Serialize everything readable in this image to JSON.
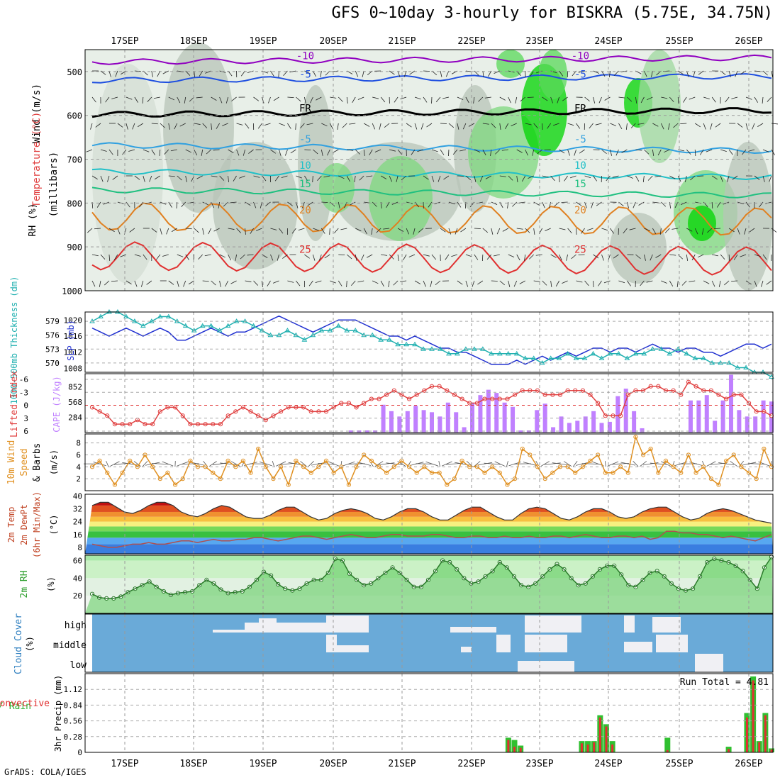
{
  "title": "GFS 0~10day 3-hourly for BISKRA (5.75E, 34.75N)",
  "footer": "GrADS: COLA/IGES",
  "colors": {
    "rh_green": "#00d400",
    "rh_grey": "#b8c4b8",
    "cape": "#c080ff",
    "lifted": "#e04040",
    "slp": "#2030d0",
    "thickness": "#20b0b0",
    "wind10": "#e09020",
    "rh2m": "#50c050",
    "cloud_blue": "#6aaad8",
    "cloud_white": "#f0f0f4",
    "precip_green": "#30c030",
    "precip_red": "#e03030"
  },
  "chart_data": [
    {
      "panel": "upper-air",
      "type": "heatmap",
      "ylabel_parts": [
        "RH (%)",
        "Temperature (°C)",
        "Wind (m/s)"
      ],
      "yunit": "(millibars)",
      "yticks": [
        500,
        600,
        700,
        800,
        900,
        1000
      ],
      "ylim": [
        450,
        1000
      ],
      "days": [
        "17SEP",
        "18SEP",
        "19SEP",
        "20SEP",
        "21SEP",
        "22SEP",
        "23SEP",
        "24SEP",
        "25SEP",
        "26SEP"
      ],
      "isotherms": [
        {
          "label": "-10",
          "color": "#9000c0",
          "level": 478
        },
        {
          "label": "-5",
          "color": "#2050e0",
          "level": 520
        },
        {
          "label": "FR",
          "color": "#000000",
          "level": 598
        },
        {
          "label": "-5",
          "color": "#30a0e0",
          "level": 668
        },
        {
          "label": "10",
          "color": "#20c0c8",
          "level": 728
        },
        {
          "label": "15",
          "color": "#20c080",
          "level": 770
        },
        {
          "label": "20",
          "color": "#e08020",
          "level": 830
        },
        {
          "label": "25",
          "color": "#e03030",
          "level": 920
        }
      ]
    },
    {
      "panel": "slp-thickness",
      "type": "line",
      "ylabel_left": "1000-500mb Thickness (dm)",
      "ylabel_right": "SLP (mb)",
      "thickness_ticks": [
        570,
        573,
        576,
        579
      ],
      "slp_ticks": [
        1008,
        1012,
        1016,
        1020
      ],
      "series": [
        {
          "values": [
            1018,
            1017,
            1016,
            1017,
            1018,
            1017,
            1016,
            1017,
            1018,
            1017,
            1015,
            1015,
            1016,
            1017,
            1018,
            1017,
            1016,
            1017,
            1017,
            1018,
            1019,
            1020,
            1021,
            1020,
            1019,
            1018,
            1017,
            1018,
            1019,
            1020,
            1020,
            1020,
            1019,
            1018,
            1017,
            1016,
            1016,
            1015,
            1016,
            1015,
            1014,
            1013,
            1013,
            1012,
            1012,
            1011,
            1010,
            1009,
            1009,
            1009,
            1010,
            1009,
            1010,
            1011,
            1010,
            1011,
            1012,
            1011,
            1012,
            1013,
            1013,
            1012,
            1013,
            1013,
            1012,
            1013,
            1014,
            1013,
            1013,
            1012,
            1013,
            1013,
            1012,
            1012,
            1011,
            1012,
            1013,
            1014,
            1014,
            1013,
            1014
          ]
        },
        {
          "values": [
            579,
            580,
            581,
            581,
            580,
            579,
            578,
            579,
            580,
            580,
            579,
            578,
            577,
            578,
            578,
            577,
            578,
            579,
            579,
            578,
            577,
            576,
            576,
            577,
            576,
            575,
            576,
            577,
            577,
            578,
            577,
            577,
            576,
            576,
            575,
            575,
            574,
            574,
            574,
            573,
            573,
            573,
            572,
            572,
            573,
            573,
            573,
            572,
            572,
            572,
            572,
            571,
            571,
            570,
            571,
            571,
            572,
            571,
            571,
            572,
            571,
            572,
            572,
            571,
            572,
            572,
            573,
            573,
            572,
            573,
            572,
            571,
            571,
            570,
            570,
            570,
            569,
            569,
            568,
            568,
            567
          ]
        }
      ]
    },
    {
      "panel": "lifted-cape",
      "type": "bar",
      "ylabel_left": "Lifted Index",
      "ylabel_right": "CAPE (J/kg)",
      "li_ticks": [
        "-6",
        "-3",
        "0",
        "3",
        "6"
      ],
      "cape_ticks": [
        284,
        568,
        852
      ],
      "series": [
        {
          "values": [
            0,
            0,
            0,
            0,
            0,
            0,
            0,
            0,
            0,
            0,
            0,
            0,
            0,
            0,
            0,
            0,
            0,
            0,
            0,
            0,
            0,
            0,
            0,
            0,
            0,
            0,
            0,
            0,
            0,
            0,
            0,
            0,
            40,
            40,
            40,
            40,
            520,
            400,
            300,
            400,
            500,
            420,
            380,
            300,
            560,
            380,
            100,
            560,
            700,
            800,
            740,
            560,
            480,
            40,
            40,
            420,
            540,
            100,
            300,
            180,
            220,
            300,
            400,
            180,
            200,
            680,
            820,
            400,
            80,
            0,
            0,
            0,
            0,
            0,
            600,
            600,
            700,
            220,
            600,
            1080,
            420,
            300,
            300,
            600,
            580
          ]
        },
        {
          "values": [
            1,
            2,
            3,
            5,
            5,
            5,
            4,
            5,
            5,
            2,
            1,
            1,
            3,
            5,
            5,
            5,
            5,
            5,
            3,
            2,
            1,
            2,
            3,
            4,
            3,
            2,
            1,
            1,
            1,
            2,
            2,
            2,
            1,
            0,
            0,
            1,
            0,
            -1,
            -1,
            -2,
            -3,
            -2,
            -1,
            -2,
            -3,
            -4,
            -4,
            -3,
            -2,
            -1,
            0,
            0,
            -1,
            -1,
            -1,
            -1,
            -2,
            -3,
            -3,
            -3,
            -2,
            -2,
            -2,
            -3,
            -3,
            -3,
            -2,
            0,
            3,
            3,
            3,
            -2,
            -3,
            -3,
            -4,
            -4,
            -3,
            -3,
            -2,
            -5,
            -4,
            -3,
            -3,
            -2,
            -1,
            -2,
            -2,
            0,
            2,
            2,
            3
          ]
        }
      ]
    },
    {
      "panel": "wind10m",
      "type": "line",
      "ylabel": "10m Wind Speed & Barbs (m/s)",
      "yticks": [
        2,
        4,
        6,
        8
      ],
      "ylim": [
        0,
        9.5
      ],
      "series": [
        {
          "values": [
            4,
            5,
            3,
            1,
            3,
            5,
            4,
            6,
            4,
            2,
            3,
            1,
            2,
            5,
            4,
            4,
            3,
            2,
            5,
            4,
            5,
            3,
            7,
            4,
            2,
            4,
            1,
            5,
            4,
            3,
            4,
            5,
            3,
            4,
            1,
            4,
            6,
            5,
            4,
            3,
            4,
            5,
            4,
            3,
            4,
            3,
            3,
            1,
            2,
            5,
            4,
            4,
            3,
            4,
            3,
            1,
            2,
            7,
            6,
            4,
            2,
            3,
            4,
            4,
            3,
            4,
            5,
            6,
            3,
            3,
            4,
            3,
            9,
            6,
            7,
            3,
            5,
            4,
            3,
            6,
            3,
            4,
            2,
            1,
            5,
            6,
            4,
            3,
            2,
            7,
            4
          ]
        }
      ]
    },
    {
      "panel": "temp2m",
      "type": "area",
      "ylabel": "2m Temp 2m DewPt (6hr Min/Max) (°C)",
      "yticks": [
        8,
        16,
        24,
        32,
        40
      ],
      "ylim": [
        4,
        41
      ],
      "series": [
        {
          "values": [
            34,
            36,
            36,
            33,
            30,
            29,
            31,
            34,
            36,
            36,
            34,
            30,
            28,
            27,
            29,
            32,
            34,
            33,
            30,
            27,
            26,
            26,
            28,
            31,
            33,
            33,
            30,
            27,
            25,
            26,
            29,
            31,
            32,
            31,
            29,
            26,
            25,
            27,
            30,
            32,
            32,
            30,
            27,
            25,
            25,
            28,
            31,
            33,
            33,
            30,
            27,
            25,
            25,
            29,
            32,
            33,
            32,
            29,
            26,
            25,
            27,
            30,
            32,
            32,
            30,
            27,
            26,
            27,
            30,
            32,
            33,
            33,
            30,
            27,
            25,
            26,
            29,
            31,
            32,
            31,
            29,
            27,
            25,
            24,
            23
          ]
        },
        {
          "values": [
            10,
            9,
            8,
            8,
            9,
            10,
            10,
            11,
            10,
            10,
            11,
            12,
            12,
            11,
            12,
            13,
            12,
            12,
            13,
            13,
            14,
            14,
            13,
            12,
            13,
            14,
            15,
            15,
            14,
            13,
            14,
            15,
            16,
            15,
            14,
            14,
            15,
            16,
            16,
            15,
            15,
            15,
            16,
            16,
            15,
            14,
            14,
            15,
            15,
            14,
            14,
            15,
            14,
            14,
            15,
            14,
            14,
            15,
            15,
            14,
            15,
            16,
            15,
            14,
            14,
            15,
            15,
            14,
            15,
            13,
            14,
            18,
            18,
            17,
            17,
            16,
            16,
            15,
            14,
            15,
            14,
            13,
            12,
            14,
            16
          ]
        }
      ]
    },
    {
      "panel": "rh2m",
      "type": "area",
      "ylabel": "2m RH (%)",
      "yticks": [
        20,
        40,
        60
      ],
      "ylim": [
        0,
        66
      ],
      "series": [
        {
          "values": [
            22,
            18,
            17,
            17,
            19,
            24,
            28,
            32,
            36,
            30,
            25,
            21,
            23,
            24,
            25,
            32,
            38,
            34,
            27,
            23,
            24,
            25,
            30,
            38,
            47,
            43,
            33,
            28,
            26,
            28,
            34,
            38,
            38,
            46,
            62,
            60,
            45,
            38,
            32,
            34,
            40,
            46,
            52,
            46,
            38,
            30,
            30,
            38,
            48,
            60,
            58,
            50,
            40,
            34,
            36,
            42,
            48,
            58,
            52,
            42,
            32,
            30,
            34,
            42,
            50,
            56,
            50,
            40,
            32,
            34,
            42,
            50,
            54,
            54,
            44,
            32,
            30,
            38,
            46,
            48,
            42,
            34,
            28,
            26,
            28,
            42,
            58,
            62,
            60,
            58,
            54,
            48,
            38,
            28,
            52,
            64
          ]
        }
      ]
    },
    {
      "panel": "cloud",
      "type": "heatmap",
      "ylabel": "Cloud Cover (%)",
      "rows": [
        "high",
        "middle",
        "low"
      ]
    },
    {
      "panel": "precip",
      "type": "bar",
      "ylabel_left": "Total / Rain Convective",
      "ylabel_right": "3hr Precip (mm)",
      "annotation": "Run Total = 4.81",
      "yticks": [
        "0",
        "0.28",
        "0.56",
        "0.84",
        "1.12"
      ],
      "ylim": [
        0,
        1.4
      ],
      "series": [
        {
          "values": [
            0,
            0,
            0,
            0,
            0,
            0,
            0,
            0,
            0,
            0,
            0,
            0,
            0,
            0,
            0,
            0,
            0,
            0,
            0,
            0,
            0,
            0,
            0,
            0,
            0,
            0,
            0,
            0,
            0,
            0,
            0,
            0,
            0,
            0,
            0,
            0,
            0,
            0,
            0,
            0,
            0,
            0,
            0,
            0,
            0,
            0,
            0,
            0,
            0,
            0,
            0,
            0,
            0,
            0,
            0,
            0,
            0,
            0,
            0,
            0,
            0,
            0,
            0,
            0,
            0,
            0,
            0,
            0,
            0.26,
            0.22,
            0.12,
            0,
            0,
            0,
            0,
            0,
            0,
            0,
            0,
            0,
            0.2,
            0.2,
            0.2,
            0.66,
            0.5,
            0.2,
            0,
            0,
            0,
            0,
            0,
            0,
            0,
            0,
            0.26,
            0,
            0,
            0,
            0,
            0,
            0,
            0,
            0,
            0,
            0.1,
            0,
            0,
            0.7,
            1.35,
            0.2,
            0.7,
            0.07
          ]
        },
        {
          "values": [
            0,
            0,
            0,
            0,
            0,
            0,
            0,
            0,
            0,
            0,
            0,
            0,
            0,
            0,
            0,
            0,
            0,
            0,
            0,
            0,
            0,
            0,
            0,
            0,
            0,
            0,
            0,
            0,
            0,
            0,
            0,
            0,
            0,
            0,
            0,
            0,
            0,
            0,
            0,
            0,
            0,
            0,
            0,
            0,
            0,
            0,
            0,
            0,
            0,
            0,
            0,
            0,
            0,
            0,
            0,
            0,
            0,
            0,
            0,
            0,
            0,
            0,
            0,
            0,
            0,
            0,
            0,
            0,
            0.22,
            0.1,
            0.08,
            0,
            0,
            0,
            0,
            0,
            0,
            0,
            0,
            0,
            0.16,
            0.14,
            0.18,
            0.62,
            0.46,
            0.14,
            0,
            0,
            0,
            0,
            0,
            0,
            0,
            0,
            0.04,
            0,
            0,
            0,
            0,
            0,
            0,
            0,
            0,
            0,
            0.06,
            0,
            0,
            0.62,
            1.28,
            0.18,
            0.66,
            0.05
          ]
        }
      ]
    }
  ]
}
